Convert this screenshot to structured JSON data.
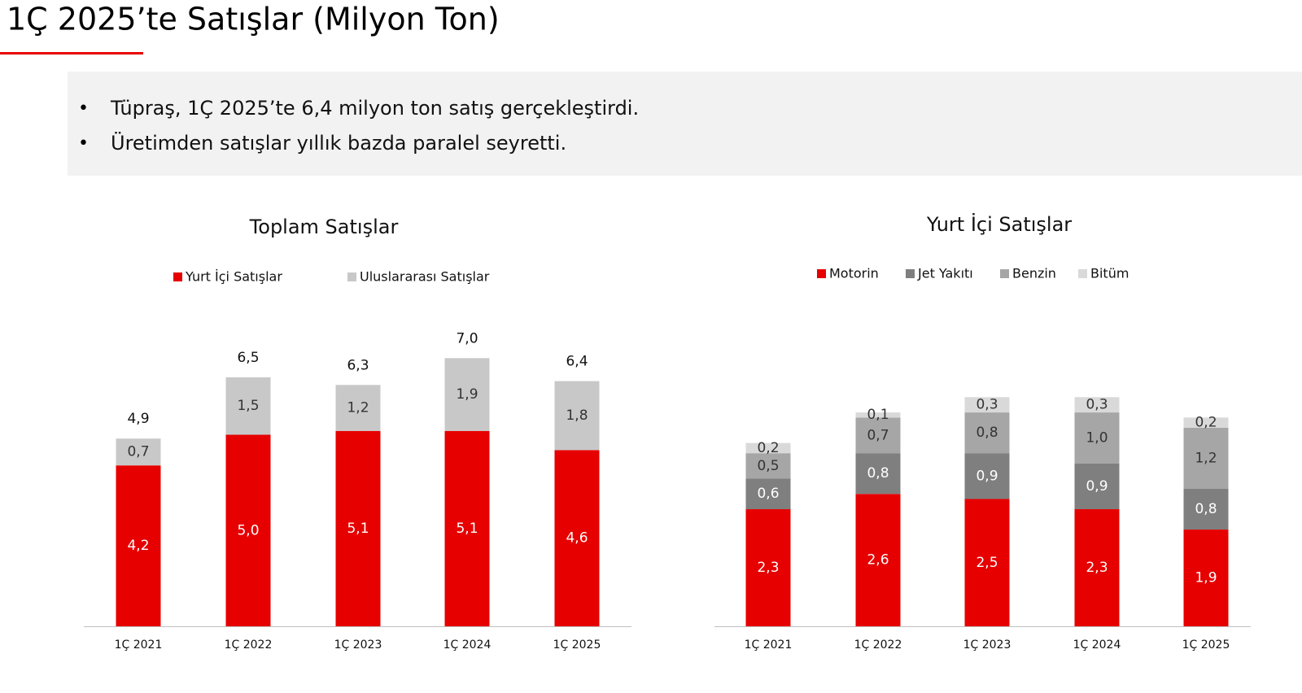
{
  "header": {
    "title": "1Ç 2025’te Satışlar (Milyon Ton)"
  },
  "bullets": [
    "Tüpraş, 1Ç 2025’te 6,4 milyon ton satış gerçekleştirdi.",
    "Üretimden satışlar yıllık bazda paralel seyretti."
  ],
  "chart_data": [
    {
      "type": "stacked-bar",
      "title": "Toplam Satışlar",
      "categories": [
        "1Ç 2021",
        "1Ç 2022",
        "1Ç 2023",
        "1Ç 2024",
        "1Ç 2025"
      ],
      "series": [
        {
          "name": "Yurt İçi Satışlar",
          "color": "#e60000",
          "values": [
            4.2,
            5.0,
            5.1,
            5.1,
            4.6
          ],
          "value_labels": [
            "4,2",
            "5,0",
            "5,1",
            "5,1",
            "4,6"
          ]
        },
        {
          "name": "Uluslararası Satışlar",
          "color": "#c8c8c8",
          "values": [
            0.7,
            1.5,
            1.2,
            1.9,
            1.8
          ],
          "value_labels": [
            "0,7",
            "1,5",
            "1,2",
            "1,9",
            "1,8"
          ]
        }
      ],
      "totals": [
        4.9,
        6.5,
        6.3,
        7.0,
        6.4
      ],
      "total_labels": [
        "4,9",
        "6,5",
        "6,3",
        "7,0",
        "6,4"
      ]
    },
    {
      "type": "stacked-bar",
      "title": "Yurt İçi Satışlar",
      "categories": [
        "1Ç 2021",
        "1Ç 2022",
        "1Ç 2023",
        "1Ç 2024",
        "1Ç 2025"
      ],
      "series": [
        {
          "name": "Motorin",
          "color": "#e60000",
          "values": [
            2.3,
            2.6,
            2.5,
            2.3,
            1.9
          ],
          "value_labels": [
            "2,3",
            "2,6",
            "2,5",
            "2,3",
            "1,9"
          ]
        },
        {
          "name": "Jet Yakıtı",
          "color": "#7f7f7f",
          "values": [
            0.6,
            0.8,
            0.9,
            0.9,
            0.8
          ],
          "value_labels": [
            "0,6",
            "0,8",
            "0,9",
            "0,9",
            "0,8"
          ]
        },
        {
          "name": "Benzin",
          "color": "#a6a6a6",
          "values": [
            0.5,
            0.7,
            0.8,
            1.0,
            1.2
          ],
          "value_labels": [
            "0,5",
            "0,7",
            "0,8",
            "1,0",
            "1,2"
          ]
        },
        {
          "name": "Bitüm",
          "color": "#d9d9d9",
          "values": [
            0.2,
            0.1,
            0.3,
            0.3,
            0.2
          ],
          "value_labels": [
            "0,2",
            "0,1",
            "0,3",
            "0,3",
            "0,2"
          ]
        }
      ]
    }
  ]
}
